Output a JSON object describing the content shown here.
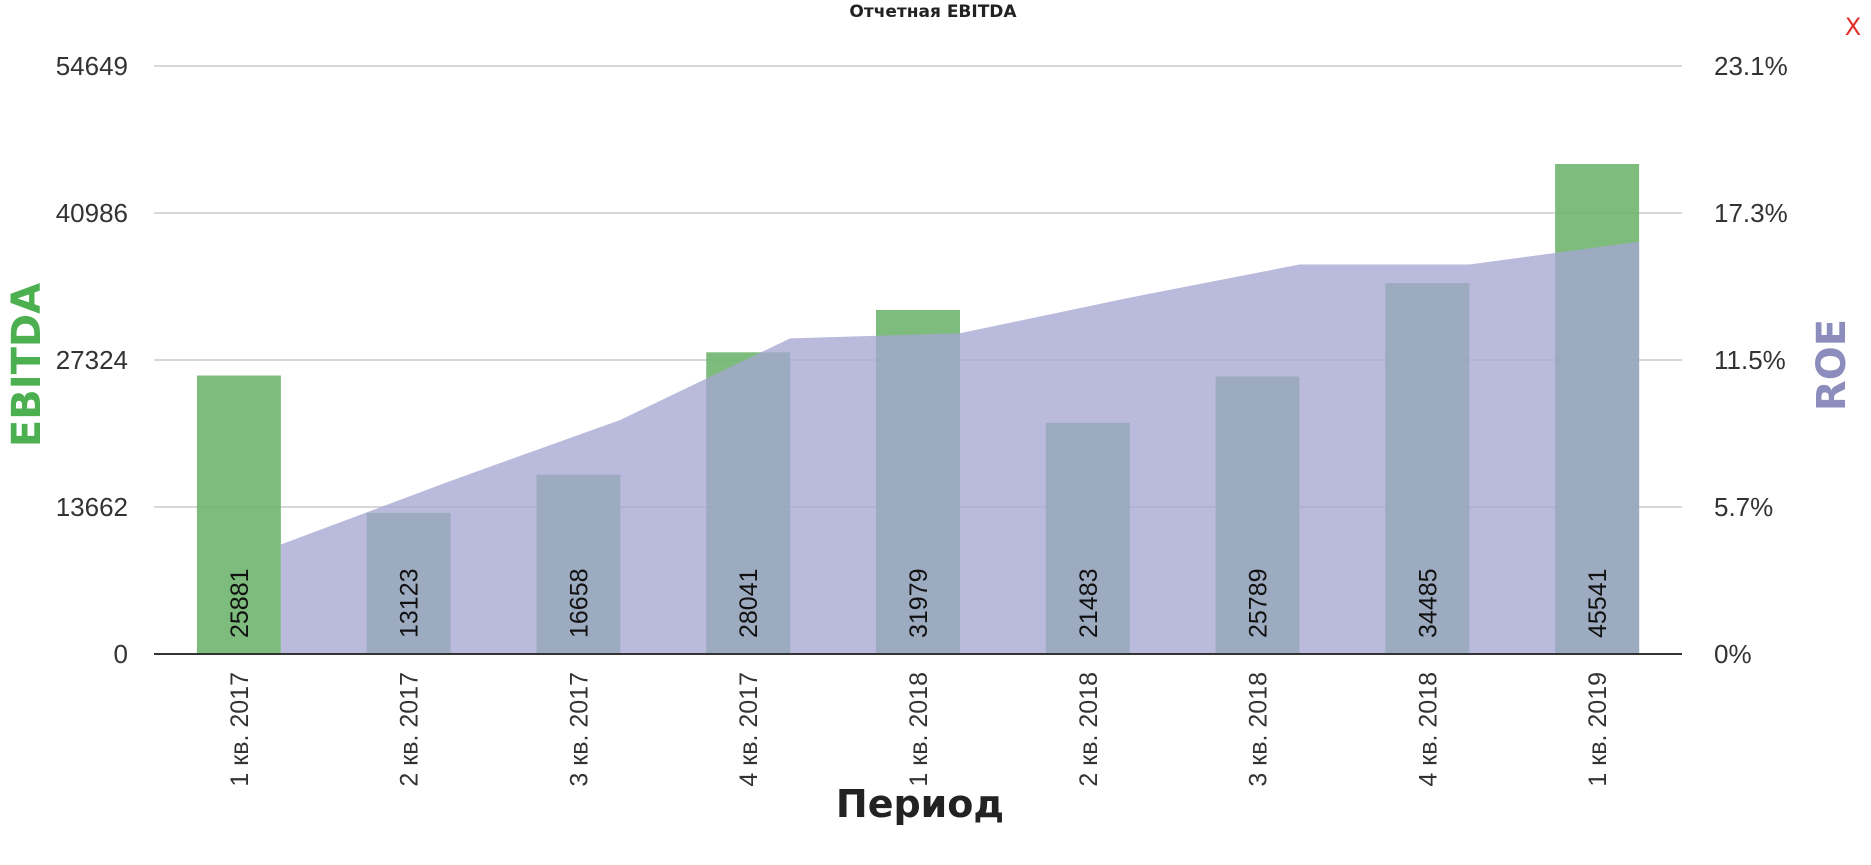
{
  "close_label": "X",
  "chart_data": {
    "type": "bar",
    "title": "Отчетная EBITDA",
    "xlabel": "Период",
    "ylabel": "EBITDA",
    "y2label": "ROE",
    "categories": [
      "1 кв. 2017",
      "2 кв. 2017",
      "3 кв. 2017",
      "4 кв. 2017",
      "1 кв. 2018",
      "2 кв. 2018",
      "3 кв. 2018",
      "4 кв. 2018",
      "1 кв. 2019"
    ],
    "series": [
      {
        "name": "EBITDA",
        "type": "bar",
        "axis": "left",
        "values": [
          25881,
          13123,
          16658,
          28041,
          31979,
          21483,
          25789,
          34485,
          45541
        ]
      },
      {
        "name": "ROE",
        "type": "area",
        "axis": "right",
        "values": [
          4.3,
          6.8,
          9.2,
          12.4,
          12.6,
          14.0,
          15.3,
          15.3,
          16.2
        ]
      }
    ],
    "ylim": [
      0,
      54649
    ],
    "y_ticks": [
      "0",
      "13662",
      "27324",
      "40986",
      "54649"
    ],
    "y2lim": [
      0,
      23.1
    ],
    "y2_ticks": [
      "0%",
      "5.7%",
      "11.5%",
      "17.3%",
      "23.1%"
    ],
    "grid": true,
    "legend": "none",
    "colors": {
      "bars": "#6bb36b",
      "area": "#a6a6d4",
      "left_axis_title": "#4caf50",
      "right_axis_title": "#8d8dbd"
    }
  }
}
